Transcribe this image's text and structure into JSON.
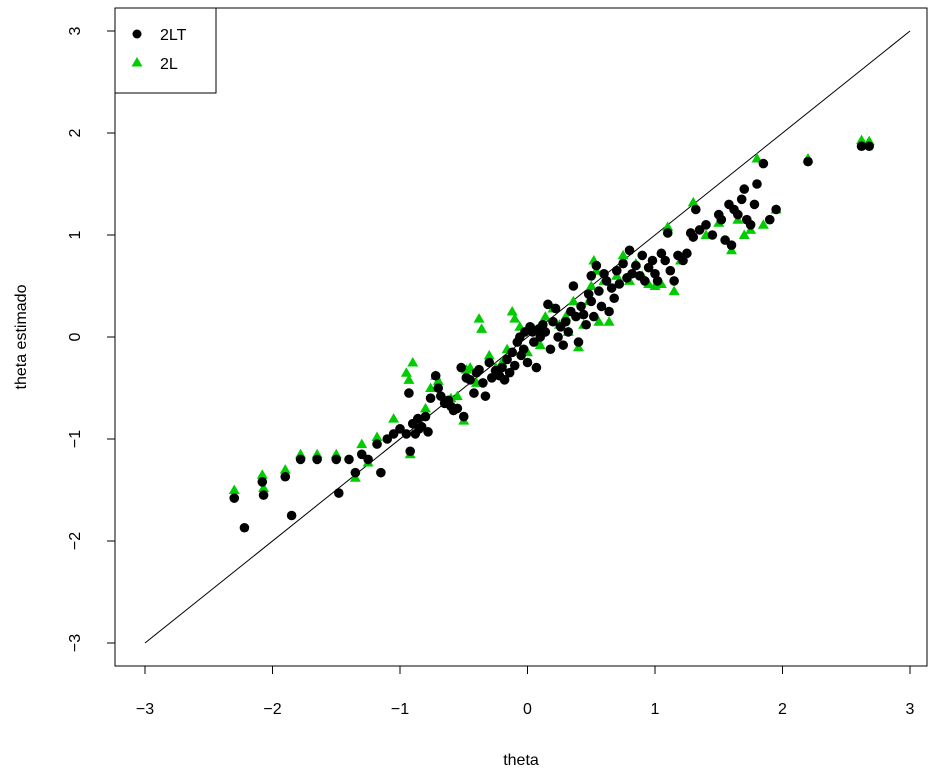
{
  "chart_data": {
    "type": "scatter",
    "title": "",
    "xlabel": "theta",
    "ylabel": "theta estimado",
    "xlim": [
      -3.15,
      3.15
    ],
    "ylim": [
      -3.25,
      3.25
    ],
    "x_ticks": [
      -3,
      -2,
      -1,
      0,
      1,
      2,
      3
    ],
    "y_ticks": [
      -3,
      -2,
      -1,
      0,
      1,
      2,
      3
    ],
    "x_tick_labels": [
      "−3",
      "−2",
      "−1",
      "0",
      "1",
      "2",
      "3"
    ],
    "y_tick_labels": [
      "−3",
      "−2",
      "−1",
      "0",
      "1",
      "2",
      "3"
    ],
    "grid": false,
    "legend_position": "top-left",
    "reference_line": {
      "type": "identity",
      "x": [
        -3,
        3
      ],
      "y": [
        -3,
        3
      ],
      "color": "#000000"
    },
    "series": [
      {
        "name": "2LT",
        "marker": "circle",
        "color": "#000000",
        "points": [
          [
            -2.3,
            -1.58
          ],
          [
            -2.22,
            -1.87
          ],
          [
            -2.08,
            -1.42
          ],
          [
            -2.07,
            -1.55
          ],
          [
            -1.9,
            -1.37
          ],
          [
            -1.85,
            -1.75
          ],
          [
            -1.78,
            -1.2
          ],
          [
            -1.65,
            -1.2
          ],
          [
            -1.5,
            -1.2
          ],
          [
            -1.48,
            -1.53
          ],
          [
            -1.4,
            -1.2
          ],
          [
            -1.35,
            -1.33
          ],
          [
            -1.3,
            -1.15
          ],
          [
            -1.25,
            -1.2
          ],
          [
            -1.18,
            -1.05
          ],
          [
            -1.15,
            -1.33
          ],
          [
            -1.1,
            -1.0
          ],
          [
            -1.05,
            -0.95
          ],
          [
            -1.0,
            -0.9
          ],
          [
            -0.95,
            -0.95
          ],
          [
            -0.93,
            -0.55
          ],
          [
            -0.92,
            -1.12
          ],
          [
            -0.9,
            -0.85
          ],
          [
            -0.88,
            -0.95
          ],
          [
            -0.86,
            -0.8
          ],
          [
            -0.85,
            -0.9
          ],
          [
            -0.83,
            -0.88
          ],
          [
            -0.8,
            -0.78
          ],
          [
            -0.78,
            -0.93
          ],
          [
            -0.76,
            -0.6
          ],
          [
            -0.72,
            -0.38
          ],
          [
            -0.7,
            -0.5
          ],
          [
            -0.68,
            -0.58
          ],
          [
            -0.65,
            -0.65
          ],
          [
            -0.62,
            -0.62
          ],
          [
            -0.6,
            -0.68
          ],
          [
            -0.58,
            -0.72
          ],
          [
            -0.55,
            -0.7
          ],
          [
            -0.52,
            -0.3
          ],
          [
            -0.5,
            -0.78
          ],
          [
            -0.48,
            -0.4
          ],
          [
            -0.45,
            -0.42
          ],
          [
            -0.42,
            -0.55
          ],
          [
            -0.4,
            -0.35
          ],
          [
            -0.38,
            -0.32
          ],
          [
            -0.35,
            -0.45
          ],
          [
            -0.33,
            -0.58
          ],
          [
            -0.3,
            -0.25
          ],
          [
            -0.28,
            -0.4
          ],
          [
            -0.25,
            -0.33
          ],
          [
            -0.22,
            -0.38
          ],
          [
            -0.2,
            -0.3
          ],
          [
            -0.18,
            -0.42
          ],
          [
            -0.16,
            -0.22
          ],
          [
            -0.14,
            -0.35
          ],
          [
            -0.12,
            -0.15
          ],
          [
            -0.1,
            -0.28
          ],
          [
            -0.08,
            -0.05
          ],
          [
            -0.06,
            0.0
          ],
          [
            -0.05,
            -0.18
          ],
          [
            -0.03,
            -0.12
          ],
          [
            -0.02,
            0.05
          ],
          [
            0.0,
            -0.25
          ],
          [
            0.02,
            0.1
          ],
          [
            0.04,
            0.05
          ],
          [
            0.05,
            -0.05
          ],
          [
            0.07,
            -0.3
          ],
          [
            0.09,
            0.08
          ],
          [
            0.1,
            0.0
          ],
          [
            0.12,
            0.12
          ],
          [
            0.14,
            0.05
          ],
          [
            0.16,
            0.32
          ],
          [
            0.18,
            -0.12
          ],
          [
            0.2,
            0.15
          ],
          [
            0.22,
            0.28
          ],
          [
            0.24,
            0.0
          ],
          [
            0.26,
            0.1
          ],
          [
            0.28,
            -0.08
          ],
          [
            0.3,
            0.15
          ],
          [
            0.32,
            0.05
          ],
          [
            0.34,
            0.25
          ],
          [
            0.36,
            0.5
          ],
          [
            0.38,
            0.2
          ],
          [
            0.4,
            -0.05
          ],
          [
            0.42,
            0.3
          ],
          [
            0.44,
            0.22
          ],
          [
            0.46,
            0.12
          ],
          [
            0.48,
            0.42
          ],
          [
            0.5,
            0.35
          ],
          [
            0.5,
            0.6
          ],
          [
            0.52,
            0.2
          ],
          [
            0.54,
            0.7
          ],
          [
            0.56,
            0.45
          ],
          [
            0.58,
            0.3
          ],
          [
            0.6,
            0.62
          ],
          [
            0.62,
            0.55
          ],
          [
            0.64,
            0.25
          ],
          [
            0.66,
            0.48
          ],
          [
            0.68,
            0.38
          ],
          [
            0.7,
            0.65
          ],
          [
            0.72,
            0.52
          ],
          [
            0.75,
            0.72
          ],
          [
            0.78,
            0.58
          ],
          [
            0.8,
            0.85
          ],
          [
            0.82,
            0.62
          ],
          [
            0.85,
            0.7
          ],
          [
            0.88,
            0.6
          ],
          [
            0.9,
            0.8
          ],
          [
            0.92,
            0.55
          ],
          [
            0.95,
            0.68
          ],
          [
            0.98,
            0.75
          ],
          [
            1.0,
            0.62
          ],
          [
            1.02,
            0.55
          ],
          [
            1.05,
            0.82
          ],
          [
            1.08,
            0.75
          ],
          [
            1.1,
            1.02
          ],
          [
            1.12,
            0.65
          ],
          [
            1.15,
            0.55
          ],
          [
            1.18,
            0.8
          ],
          [
            1.22,
            0.75
          ],
          [
            1.25,
            0.82
          ],
          [
            1.28,
            1.02
          ],
          [
            1.3,
            0.98
          ],
          [
            1.32,
            1.25
          ],
          [
            1.35,
            1.05
          ],
          [
            1.4,
            1.1
          ],
          [
            1.45,
            1.0
          ],
          [
            1.5,
            1.2
          ],
          [
            1.52,
            1.15
          ],
          [
            1.55,
            0.95
          ],
          [
            1.58,
            1.3
          ],
          [
            1.6,
            0.9
          ],
          [
            1.62,
            1.25
          ],
          [
            1.65,
            1.2
          ],
          [
            1.68,
            1.35
          ],
          [
            1.7,
            1.45
          ],
          [
            1.72,
            1.15
          ],
          [
            1.75,
            1.1
          ],
          [
            1.78,
            1.3
          ],
          [
            1.8,
            1.5
          ],
          [
            1.85,
            1.7
          ],
          [
            1.9,
            1.15
          ],
          [
            1.95,
            1.25
          ],
          [
            2.2,
            1.72
          ],
          [
            2.62,
            1.87
          ],
          [
            2.68,
            1.87
          ]
        ]
      },
      {
        "name": "2L",
        "marker": "triangle",
        "color": "#00cc00",
        "points": [
          [
            -2.3,
            -1.5
          ],
          [
            -2.08,
            -1.35
          ],
          [
            -2.07,
            -1.48
          ],
          [
            -1.9,
            -1.3
          ],
          [
            -1.78,
            -1.15
          ],
          [
            -1.65,
            -1.15
          ],
          [
            -1.5,
            -1.15
          ],
          [
            -1.35,
            -1.38
          ],
          [
            -1.3,
            -1.05
          ],
          [
            -1.25,
            -1.23
          ],
          [
            -1.18,
            -0.98
          ],
          [
            -1.05,
            -0.8
          ],
          [
            -0.95,
            -0.35
          ],
          [
            -0.93,
            -0.42
          ],
          [
            -0.92,
            -1.15
          ],
          [
            -0.9,
            -0.25
          ],
          [
            -0.85,
            -0.82
          ],
          [
            -0.8,
            -0.7
          ],
          [
            -0.76,
            -0.5
          ],
          [
            -0.72,
            -0.38
          ],
          [
            -0.7,
            -0.43
          ],
          [
            -0.6,
            -0.6
          ],
          [
            -0.55,
            -0.58
          ],
          [
            -0.5,
            -0.82
          ],
          [
            -0.48,
            -0.32
          ],
          [
            -0.45,
            -0.3
          ],
          [
            -0.4,
            -0.45
          ],
          [
            -0.38,
            0.18
          ],
          [
            -0.36,
            0.08
          ],
          [
            -0.3,
            -0.18
          ],
          [
            -0.25,
            -0.3
          ],
          [
            -0.2,
            -0.25
          ],
          [
            -0.16,
            -0.12
          ],
          [
            -0.12,
            0.25
          ],
          [
            -0.1,
            0.18
          ],
          [
            -0.06,
            0.1
          ],
          [
            0.0,
            -0.15
          ],
          [
            0.05,
            0.08
          ],
          [
            0.1,
            -0.08
          ],
          [
            0.14,
            0.2
          ],
          [
            0.2,
            0.28
          ],
          [
            0.25,
            0.12
          ],
          [
            0.3,
            0.2
          ],
          [
            0.32,
            0.05
          ],
          [
            0.36,
            0.35
          ],
          [
            0.4,
            -0.1
          ],
          [
            0.44,
            0.12
          ],
          [
            0.48,
            0.35
          ],
          [
            0.5,
            0.5
          ],
          [
            0.52,
            0.75
          ],
          [
            0.54,
            0.65
          ],
          [
            0.56,
            0.15
          ],
          [
            0.6,
            0.55
          ],
          [
            0.64,
            0.15
          ],
          [
            0.7,
            0.6
          ],
          [
            0.75,
            0.8
          ],
          [
            0.8,
            0.55
          ],
          [
            0.85,
            0.72
          ],
          [
            0.9,
            0.6
          ],
          [
            0.95,
            0.52
          ],
          [
            1.0,
            0.5
          ],
          [
            1.05,
            0.52
          ],
          [
            1.1,
            1.08
          ],
          [
            1.15,
            0.45
          ],
          [
            1.2,
            0.75
          ],
          [
            1.3,
            1.32
          ],
          [
            1.4,
            1.0
          ],
          [
            1.5,
            1.12
          ],
          [
            1.6,
            0.85
          ],
          [
            1.65,
            1.15
          ],
          [
            1.7,
            1.0
          ],
          [
            1.75,
            1.05
          ],
          [
            1.8,
            1.75
          ],
          [
            1.85,
            1.1
          ],
          [
            1.95,
            1.25
          ],
          [
            2.2,
            1.75
          ],
          [
            2.62,
            1.93
          ],
          [
            2.68,
            1.92
          ]
        ]
      }
    ]
  }
}
